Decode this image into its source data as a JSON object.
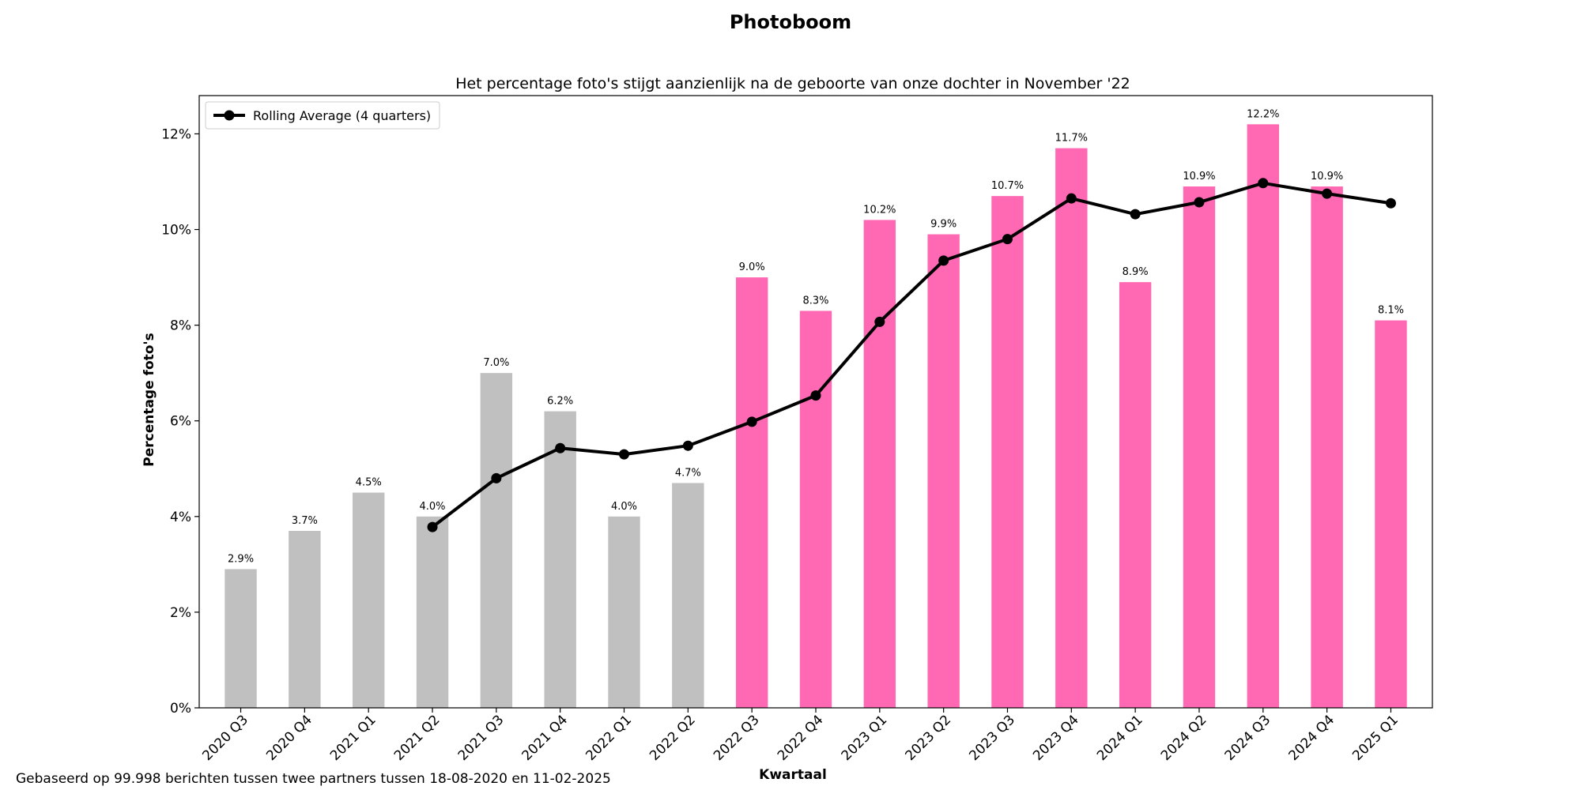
{
  "figure": {
    "suptitle": "Photoboom",
    "footnote": "Gebaseerd op 99.998 berichten tussen twee partners tussen 18-08-2020 en 11-02-2025"
  },
  "colors": {
    "before": "#c0c0c0",
    "after": "#ff69b4",
    "line": "#000000"
  },
  "chart_data": {
    "type": "bar",
    "title": "Het percentage foto's stijgt aanzienlijk na de geboorte van onze dochter in November '22",
    "xlabel": "Kwartaal",
    "ylabel": "Percentage foto's",
    "ylim": [
      0,
      12.8
    ],
    "yticks": [
      "0%",
      "2%",
      "4%",
      "6%",
      "8%",
      "10%",
      "12%"
    ],
    "ytick_values": [
      0,
      2,
      4,
      6,
      8,
      10,
      12
    ],
    "grid": false,
    "legend_position": "top-left",
    "categories": [
      "2020 Q3",
      "2020 Q4",
      "2021 Q1",
      "2021 Q2",
      "2021 Q3",
      "2021 Q4",
      "2022 Q1",
      "2022 Q2",
      "2022 Q3",
      "2022 Q4",
      "2023 Q1",
      "2023 Q2",
      "2023 Q3",
      "2023 Q4",
      "2024 Q1",
      "2024 Q2",
      "2024 Q3",
      "2024 Q4",
      "2025 Q1"
    ],
    "values": [
      2.9,
      3.7,
      4.5,
      4.0,
      7.0,
      6.2,
      4.0,
      4.7,
      9.0,
      8.3,
      10.2,
      9.9,
      10.7,
      11.7,
      8.9,
      10.9,
      12.2,
      10.9,
      8.1
    ],
    "value_labels": [
      "2.9%",
      "3.7%",
      "4.5%",
      "4.0%",
      "7.0%",
      "6.2%",
      "4.0%",
      "4.7%",
      "9.0%",
      "8.3%",
      "10.2%",
      "9.9%",
      "10.7%",
      "11.7%",
      "8.9%",
      "10.9%",
      "12.2%",
      "10.9%",
      "8.1%"
    ],
    "bar_color_group": [
      "before",
      "before",
      "before",
      "before",
      "before",
      "before",
      "before",
      "before",
      "after",
      "after",
      "after",
      "after",
      "after",
      "after",
      "after",
      "after",
      "after",
      "after",
      "after"
    ],
    "series": [
      {
        "name": "Rolling Average (4 quarters)",
        "type": "line",
        "values": [
          null,
          null,
          null,
          3.78,
          4.8,
          5.43,
          5.3,
          5.48,
          5.98,
          6.53,
          8.07,
          9.35,
          9.8,
          10.65,
          10.32,
          10.57,
          10.97,
          10.75,
          10.55
        ]
      }
    ]
  }
}
